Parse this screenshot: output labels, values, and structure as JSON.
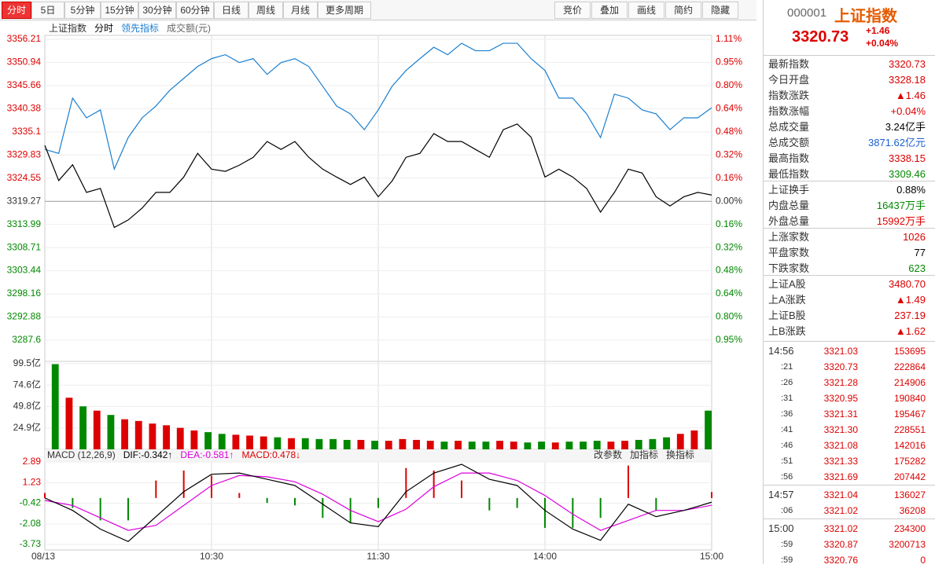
{
  "toolbar": {
    "tabs": [
      "分时",
      "5日",
      "5分钟",
      "15分钟",
      "30分钟",
      "60分钟",
      "日线",
      "周线",
      "月线",
      "更多周期"
    ],
    "tools": [
      "竞价",
      "叠加",
      "画线",
      "简约",
      "隐藏"
    ]
  },
  "main": {
    "legend": [
      "上证指数",
      "分时",
      "领先指标",
      "成交额(元)"
    ],
    "x": [
      0,
      5,
      10,
      15,
      20,
      25,
      30,
      35,
      40,
      45,
      50,
      55,
      60,
      65,
      70,
      75,
      80,
      85,
      90,
      95,
      100,
      105,
      110,
      115,
      120,
      125,
      130,
      135,
      140,
      145,
      150,
      155,
      160,
      165,
      170,
      175,
      180,
      185,
      190,
      195,
      200,
      205,
      210,
      215,
      220,
      225,
      230,
      235,
      240
    ],
    "xlim": [
      0,
      240
    ],
    "xticks": [
      {
        "value": 0,
        "label": "08/13"
      },
      {
        "value": 60,
        "label": "10:30"
      },
      {
        "value": 120,
        "label": "11:30"
      },
      {
        "value": 180,
        "label": "14:00"
      },
      {
        "value": 240,
        "label": "15:00"
      }
    ],
    "ylim": [
      3287.6,
      3356.21
    ],
    "yticks": [
      3356.21,
      3350.94,
      3345.66,
      3340.38,
      3335.1,
      3329.83,
      3324.55,
      3319.27,
      3313.99,
      3308.71,
      3303.44,
      3298.16,
      3292.88,
      3287.6
    ],
    "pct_labels": [
      "1.11%",
      "0.95%",
      "0.80%",
      "0.64%",
      "0.48%",
      "0.32%",
      "0.16%",
      "0.00%",
      "0.16%",
      "0.32%",
      "0.48%",
      "0.64%",
      "0.80%",
      "0.95%"
    ],
    "prev_close": 3319.27,
    "up_color": "#d00",
    "down_color": "#080",
    "series": [
      {
        "name": "分时",
        "color": "#000",
        "values": [
          3332.0,
          3324.0,
          3327.6,
          3321.3,
          3322.2,
          3313.3,
          3315.0,
          3317.7,
          3321.3,
          3321.3,
          3324.8,
          3330.2,
          3326.6,
          3326.1,
          3327.5,
          3329.3,
          3332.9,
          3331.1,
          3332.9,
          3329.3,
          3326.6,
          3324.8,
          3323.1,
          3324.8,
          3320.3,
          3323.9,
          3329.3,
          3330.2,
          3334.7,
          3332.9,
          3332.9,
          3331.1,
          3329.3,
          3335.6,
          3336.9,
          3333.9,
          3324.8,
          3326.6,
          3324.8,
          3322.2,
          3316.8,
          3321.3,
          3326.6,
          3325.7,
          3320.3,
          3318.2,
          3320.3,
          3321.3,
          3320.7
        ]
      },
      {
        "name": "领先指标",
        "color": "#1a7fd0",
        "values": [
          3331.1,
          3330.2,
          3342.8,
          3338.3,
          3340.1,
          3326.6,
          3333.8,
          3338.3,
          3341.0,
          3344.6,
          3347.3,
          3350.0,
          3351.8,
          3352.7,
          3350.9,
          3351.8,
          3348.2,
          3350.9,
          3351.8,
          3350.0,
          3345.5,
          3341.0,
          3339.2,
          3335.6,
          3340.1,
          3345.5,
          3349.1,
          3351.8,
          3354.4,
          3352.7,
          3355.3,
          3353.6,
          3353.6,
          3355.3,
          3355.3,
          3351.8,
          3349.1,
          3342.8,
          3342.8,
          3339.2,
          3333.8,
          3343.7,
          3342.8,
          3340.1,
          3339.2,
          3335.6,
          3338.3,
          3338.3,
          3340.6
        ]
      }
    ]
  },
  "volume": {
    "x": [
      5,
      10,
      15,
      20,
      25,
      30,
      35,
      40,
      45,
      50,
      55,
      60,
      65,
      70,
      75,
      80,
      85,
      90,
      95,
      100,
      105,
      110,
      115,
      120,
      125,
      130,
      135,
      140,
      145,
      150,
      155,
      160,
      165,
      170,
      175,
      180,
      185,
      190,
      195,
      200,
      205,
      210,
      215,
      220,
      225,
      230,
      235,
      240
    ],
    "ylim": [
      0,
      99.5
    ],
    "yticks": [
      {
        "value": 24.9,
        "label": "24.9亿"
      },
      {
        "value": 49.8,
        "label": "49.8亿"
      },
      {
        "value": 74.6,
        "label": "74.6亿"
      },
      {
        "value": 99.5,
        "label": "99.5亿"
      }
    ],
    "values": [
      99,
      60,
      50,
      45,
      40,
      35,
      33,
      30,
      28,
      25,
      22,
      20,
      18,
      17,
      16,
      15,
      14,
      13,
      13,
      12,
      12,
      11,
      11,
      10,
      10,
      12,
      11,
      10,
      9,
      10,
      9,
      9,
      10,
      9,
      8,
      9,
      8,
      9,
      9,
      10,
      9,
      10,
      11,
      12,
      14,
      18,
      22,
      45
    ]
  },
  "macd": {
    "header": [
      "MACD (12,26,9)",
      "DIF:-0.342↑",
      "DEA:-0.581↑",
      "MACD:0.478↓"
    ],
    "buttons": [
      "改参数",
      "加指标",
      "换指标"
    ],
    "x": [
      0,
      10,
      20,
      30,
      40,
      50,
      60,
      70,
      80,
      90,
      100,
      110,
      120,
      130,
      140,
      150,
      160,
      170,
      180,
      190,
      200,
      210,
      220,
      230,
      240
    ],
    "ylim": [
      -3.73,
      2.89
    ],
    "yticks": [
      2.89,
      1.23,
      -0.42,
      -2.08,
      -3.73
    ],
    "series": [
      {
        "name": "DIF",
        "color": "#000",
        "values": [
          0.0,
          -1.0,
          -2.5,
          -3.5,
          -1.5,
          0.5,
          1.9,
          2.0,
          1.5,
          1.0,
          -0.5,
          -2.0,
          -2.3,
          0.5,
          2.0,
          2.7,
          1.5,
          1.0,
          -1.0,
          -2.5,
          -3.4,
          -0.5,
          -1.5,
          -1.0,
          -0.342
        ]
      },
      {
        "name": "DEA",
        "color": "#d0d",
        "values": [
          -0.2,
          -0.6,
          -1.6,
          -2.6,
          -2.2,
          -0.6,
          1.0,
          1.8,
          1.7,
          1.3,
          0.3,
          -1.0,
          -1.9,
          -0.9,
          0.9,
          2.0,
          2.0,
          1.4,
          0.2,
          -1.3,
          -2.6,
          -1.8,
          -1.0,
          -1.0,
          -0.581
        ]
      }
    ],
    "hist": [
      0.4,
      -0.8,
      -1.8,
      -1.8,
      1.4,
      2.2,
      1.8,
      0.4,
      -0.4,
      -0.6,
      -1.6,
      -2.0,
      -0.8,
      2.4,
      2.2,
      1.4,
      -1.0,
      -0.8,
      -2.4,
      -2.4,
      -1.6,
      2.6,
      -1.0,
      0.0,
      0.478
    ]
  },
  "panel": {
    "code": "000001",
    "name": "上证指数",
    "price": "3320.73",
    "change": "+1.46",
    "pct": "+0.04%",
    "sections": [
      [
        [
          "最新指数",
          "3320.73",
          "#d00"
        ],
        [
          "今日开盘",
          "3328.18",
          "#d00"
        ],
        [
          "指数涨跌",
          "▲1.46",
          "#d00"
        ],
        [
          "指数涨幅",
          "+0.04%",
          "#d00"
        ],
        [
          "总成交量",
          "3.24亿手",
          "#000"
        ],
        [
          "总成交额",
          "3871.62亿元",
          "#1a5fd0"
        ],
        [
          "最高指数",
          "3338.15",
          "#d00"
        ],
        [
          "最低指数",
          "3309.46",
          "#080"
        ]
      ],
      [
        [
          "上证换手",
          "0.88%",
          "#000"
        ],
        [
          "内盘总量",
          "16437万手",
          "#080"
        ],
        [
          "外盘总量",
          "15992万手",
          "#d00"
        ]
      ],
      [
        [
          "上涨家数",
          "1026",
          "#d00"
        ],
        [
          "平盘家数",
          "77",
          "#000"
        ],
        [
          "下跌家数",
          "623",
          "#080"
        ]
      ],
      [
        [
          "上证A股",
          "3480.70",
          "#d00"
        ],
        [
          "上A涨跌",
          "▲1.49",
          "#d00"
        ],
        [
          "上证B股",
          "237.19",
          "#d00"
        ],
        [
          "上B涨跌",
          "▲1.62",
          "#d00"
        ]
      ]
    ],
    "ticks": [
      [
        [
          "14:56",
          "3321.03",
          "153695"
        ],
        [
          ":21",
          "3320.73",
          "222864"
        ],
        [
          ":26",
          "3321.28",
          "214906"
        ],
        [
          ":31",
          "3320.95",
          "190840"
        ],
        [
          ":36",
          "3321.31",
          "195467"
        ],
        [
          ":41",
          "3321.30",
          "228551"
        ],
        [
          ":46",
          "3321.08",
          "142016"
        ],
        [
          ":51",
          "3321.33",
          "175282"
        ],
        [
          ":56",
          "3321.69",
          "207442"
        ]
      ],
      [
        [
          "14:57",
          "3321.04",
          "136027"
        ],
        [
          ":06",
          "3321.02",
          "36208"
        ]
      ],
      [
        [
          "15:00",
          "3321.02",
          "234300"
        ],
        [
          ":59",
          "3320.87",
          "3200713"
        ],
        [
          ":59",
          "3320.76",
          "0"
        ]
      ]
    ]
  }
}
